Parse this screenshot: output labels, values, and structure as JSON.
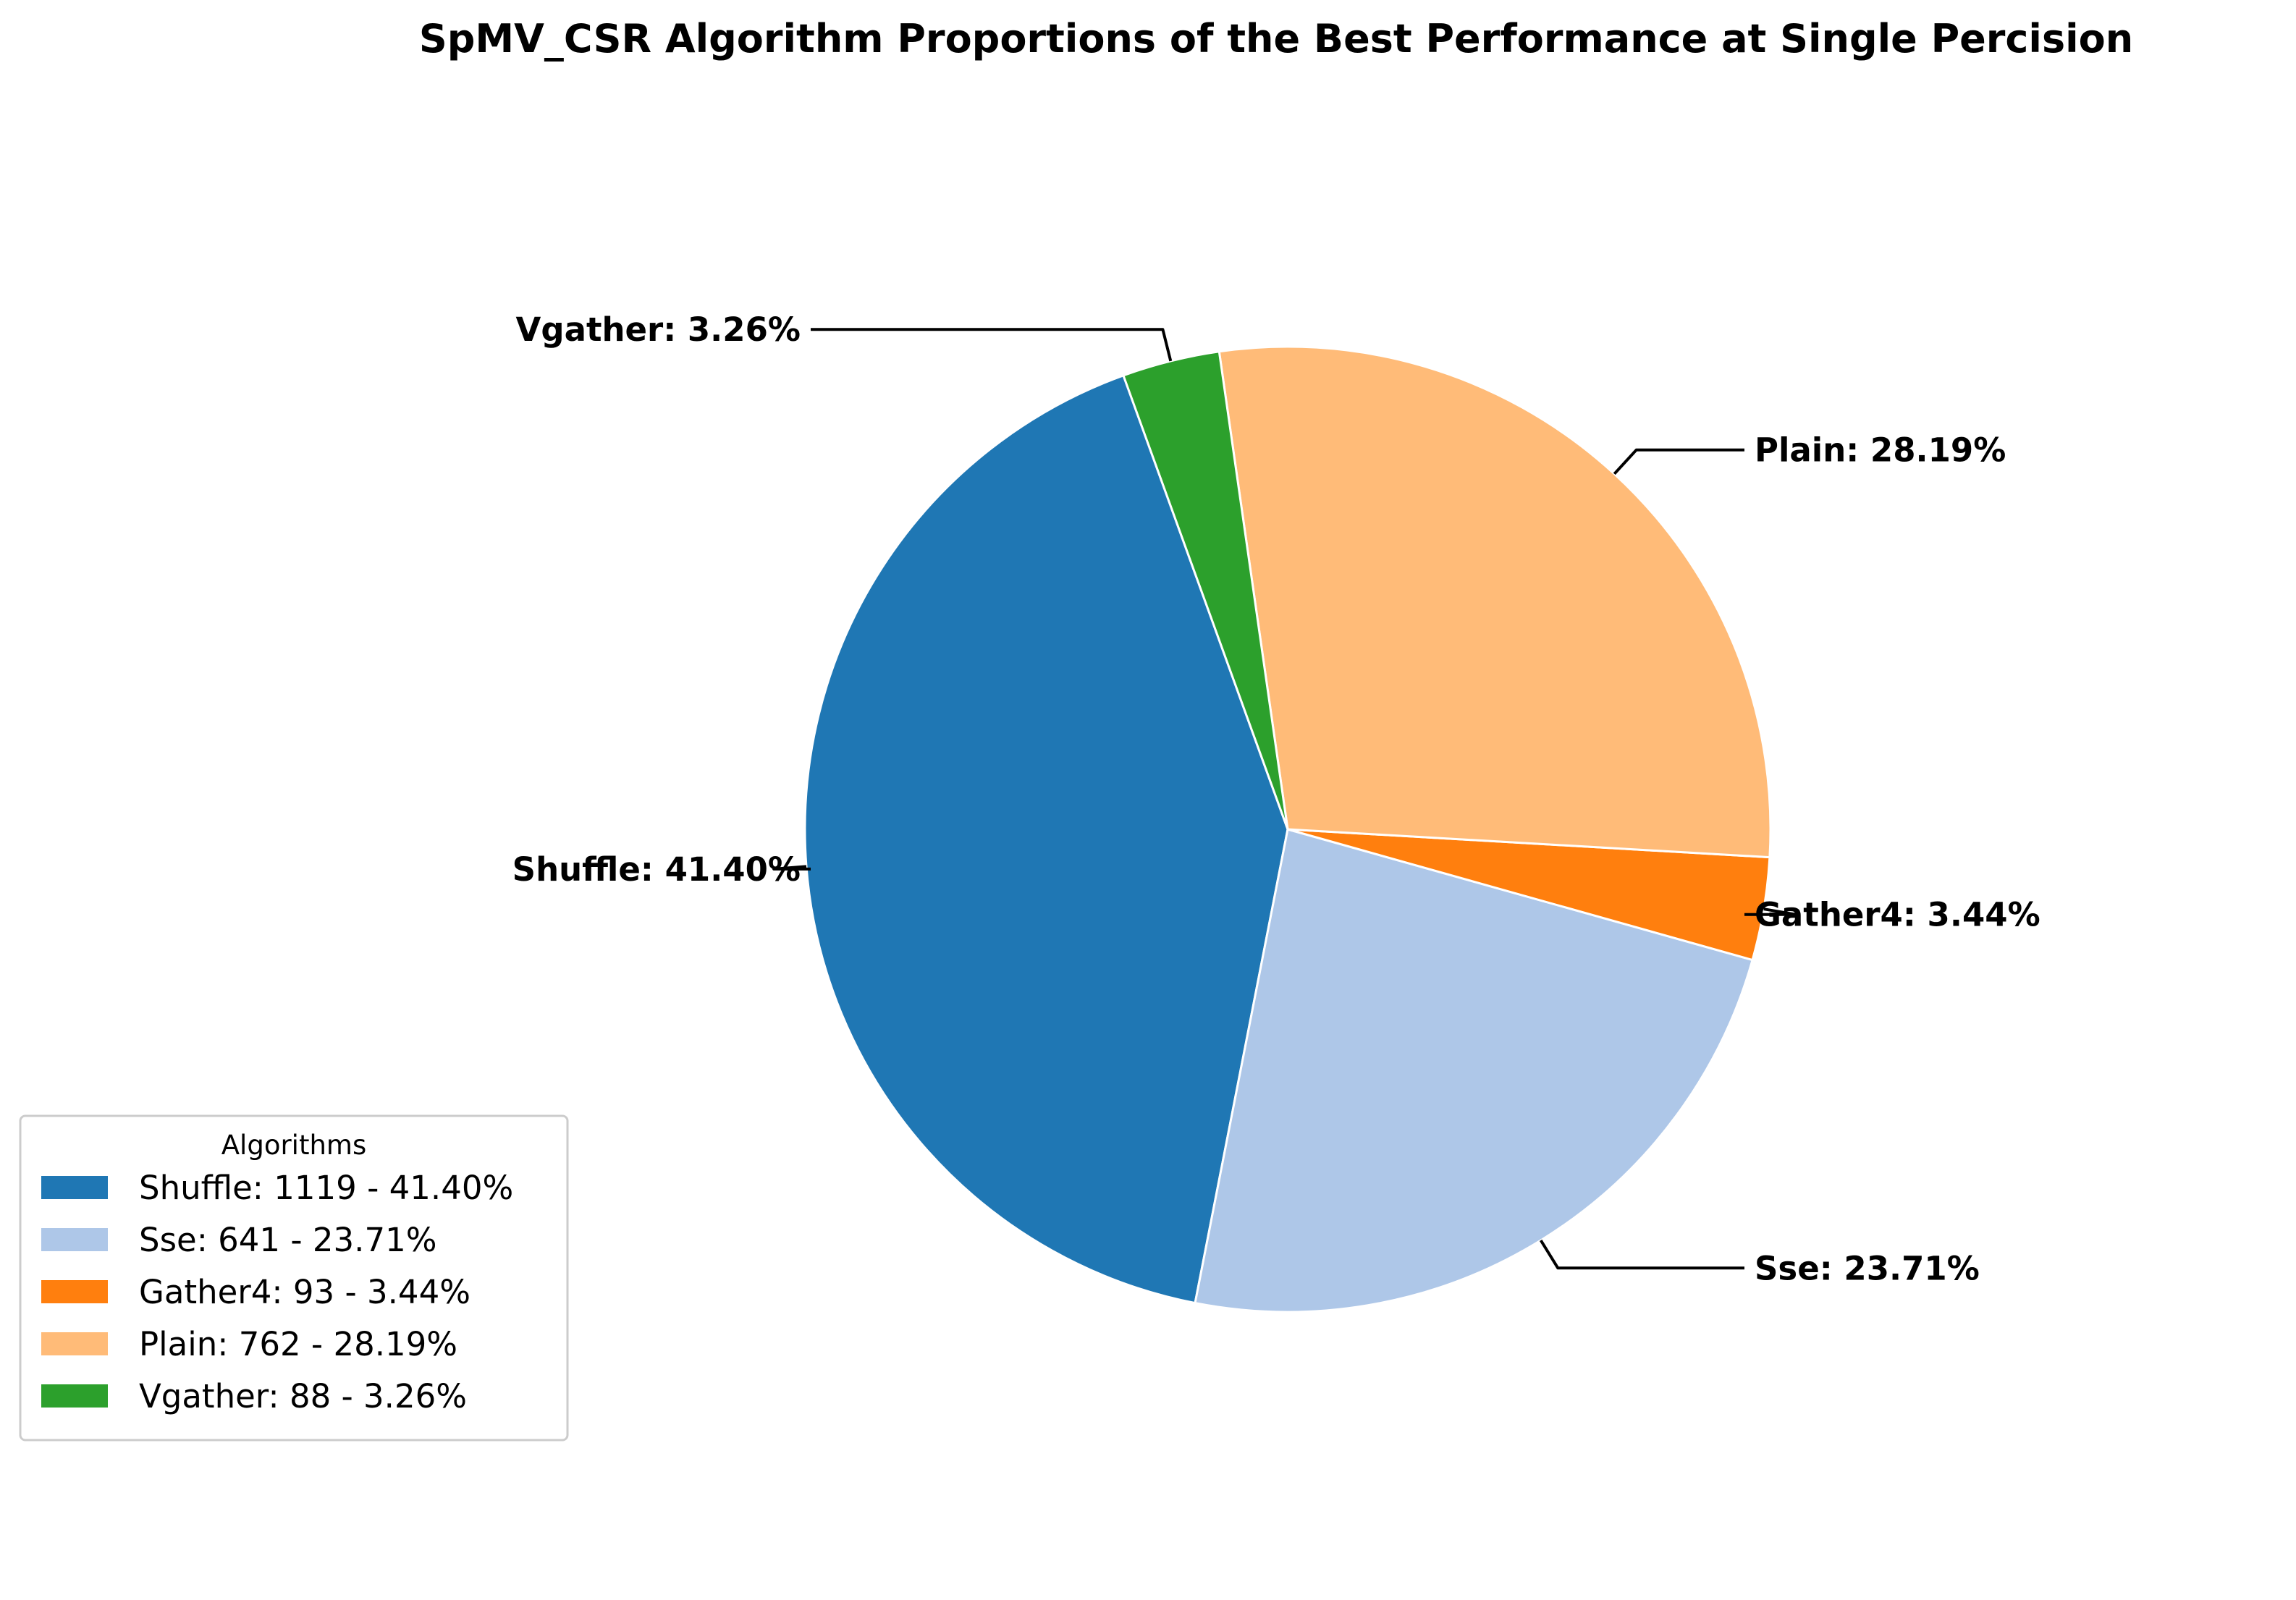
{
  "chart_data": {
    "type": "pie",
    "title": "SpMV_CSR Algorithm Proportions of the Best Performance at Single Percision",
    "slices": [
      {
        "name": "Shuffle",
        "count": 1119,
        "percent": 41.4,
        "color": "#1f77b4",
        "callout": "Shuffle: 41.40%",
        "legend": "Shuffle: 1119 - 41.40%"
      },
      {
        "name": "Sse",
        "count": 641,
        "percent": 23.71,
        "color": "#aec7e8",
        "callout": "Sse: 23.71%",
        "legend": "Sse: 641 - 23.71%"
      },
      {
        "name": "Gather4",
        "count": 93,
        "percent": 3.44,
        "color": "#ff7f0e",
        "callout": "Gather4: 3.44%",
        "legend": "Gather4: 93 - 3.44%"
      },
      {
        "name": "Plain",
        "count": 762,
        "percent": 28.19,
        "color": "#ffbb78",
        "callout": "Plain: 28.19%",
        "legend": "Plain: 762 - 28.19%"
      },
      {
        "name": "Vgather",
        "count": 88,
        "percent": 3.26,
        "color": "#2ca02c",
        "callout": "Vgather: 3.26%",
        "legend": "Vgather: 88 - 3.26%"
      }
    ],
    "legend": {
      "title": "Algorithms",
      "placement": "lower-left"
    }
  }
}
